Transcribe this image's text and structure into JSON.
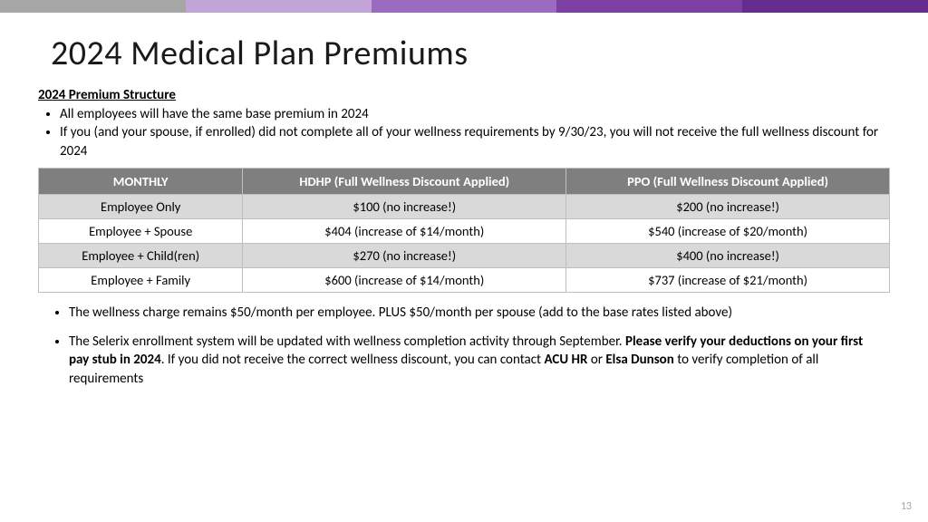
{
  "topbar_colors": [
    "#a6a6a6",
    "#c3a4d8",
    "#9b6bbf",
    "#7e3fa3",
    "#662d91"
  ],
  "title": "2024 Medical Plan Premiums",
  "subheading": "2024 Premium Structure",
  "top_bullets": [
    "All employees will have the same base premium in 2024",
    "If you (and your spouse, if enrolled) did not complete all of your wellness requirements by 9/30/23, you will not receive the full wellness discount for 2024"
  ],
  "table": {
    "columns": [
      "MONTHLY",
      "HDHP (Full Wellness Discount Applied)",
      "PPO (Full Wellness Discount Applied)"
    ],
    "col_widths": [
      "24%",
      "38%",
      "38%"
    ],
    "header_bg": "#7f7f7f",
    "header_fg": "#ffffff",
    "shaded_bg": "#d9d9d9",
    "border_color": "#bfbfbf",
    "rows": [
      {
        "shaded": true,
        "cells": [
          "Employee Only",
          "$100 (no increase!)",
          "$200 (no increase!)"
        ]
      },
      {
        "shaded": false,
        "cells": [
          "Employee + Spouse",
          "$404 (increase of $14/month)",
          "$540 (increase of $20/month)"
        ]
      },
      {
        "shaded": true,
        "cells": [
          "Employee + Child(ren)",
          "$270 (no increase!)",
          "$400 (no increase!)"
        ]
      },
      {
        "shaded": false,
        "cells": [
          "Employee + Family",
          "$600 (increase of $14/month)",
          "$737 (increase of $21/month)"
        ]
      }
    ]
  },
  "bottom_bullets": [
    {
      "segments": [
        {
          "text": "The wellness charge remains $50/month per employee. PLUS $50/month per spouse (add to the base rates listed above)",
          "bold": false
        }
      ]
    },
    {
      "segments": [
        {
          "text": "The Selerix enrollment system will be updated with wellness completion activity through September. ",
          "bold": false
        },
        {
          "text": "Please verify your deductions on your first pay stub in 2024",
          "bold": true
        },
        {
          "text": ".  If you did not receive the correct wellness discount, you can contact ",
          "bold": false
        },
        {
          "text": "ACU HR",
          "bold": true
        },
        {
          "text": " or ",
          "bold": false
        },
        {
          "text": "Elsa Dunson",
          "bold": true
        },
        {
          "text": " to verify completion of all requirements",
          "bold": false
        }
      ]
    }
  ],
  "page_number": "13"
}
